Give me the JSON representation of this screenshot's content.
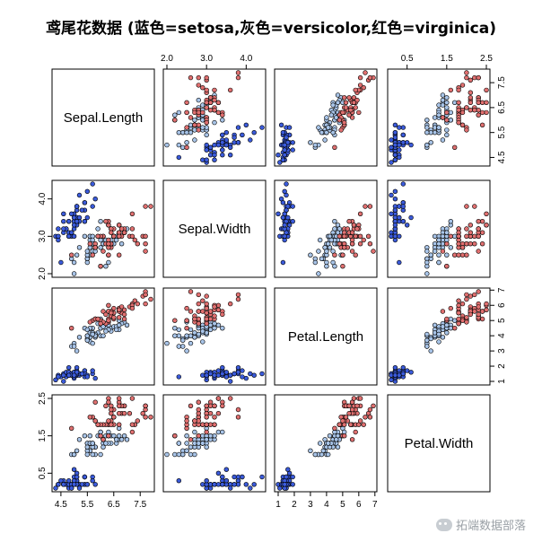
{
  "chart_data": {
    "type": "scatter",
    "title": "鸢尾花数据 (蓝色=setosa,灰色=versicolor,红色=virginica)",
    "variables": [
      "Sepal.Length",
      "Sepal.Width",
      "Petal.Length",
      "Petal.Width"
    ],
    "ranges": {
      "Sepal.Length": [
        4.3,
        7.9
      ],
      "Sepal.Width": [
        2.0,
        4.4
      ],
      "Petal.Length": [
        1.0,
        6.9
      ],
      "Petal.Width": [
        0.1,
        2.5
      ]
    },
    "ticks": {
      "Sepal.Length": [
        "4.5",
        "5.5",
        "6.5",
        "7.5"
      ],
      "Sepal.Width": [
        "2.0",
        "3.0",
        "4.0"
      ],
      "Petal.Length": [
        "1",
        "2",
        "3",
        "4",
        "5",
        "6",
        "7"
      ],
      "Petal.Width": [
        "0.5",
        "1.5",
        "2.5"
      ]
    },
    "species_colors": {
      "setosa": "#3b5bdb",
      "versicolor": "#a8c4e8",
      "virginica": "#e07070"
    },
    "grid": false,
    "legend": "none",
    "series": [
      {
        "values": [
          [
            5.1,
            3.5,
            1.4,
            0.2
          ],
          [
            4.9,
            3.0,
            1.4,
            0.2
          ],
          [
            4.7,
            3.2,
            1.3,
            0.2
          ],
          [
            4.6,
            3.1,
            1.5,
            0.2
          ],
          [
            5.0,
            3.6,
            1.4,
            0.2
          ],
          [
            5.4,
            3.9,
            1.7,
            0.4
          ],
          [
            4.6,
            3.4,
            1.4,
            0.3
          ],
          [
            5.0,
            3.4,
            1.5,
            0.2
          ],
          [
            4.4,
            2.9,
            1.4,
            0.2
          ],
          [
            4.9,
            3.1,
            1.5,
            0.1
          ],
          [
            5.4,
            3.7,
            1.5,
            0.2
          ],
          [
            4.8,
            3.4,
            1.6,
            0.2
          ],
          [
            4.8,
            3.0,
            1.4,
            0.1
          ],
          [
            4.3,
            3.0,
            1.1,
            0.1
          ],
          [
            5.8,
            4.0,
            1.2,
            0.2
          ],
          [
            5.7,
            4.4,
            1.5,
            0.4
          ],
          [
            5.4,
            3.9,
            1.3,
            0.4
          ],
          [
            5.1,
            3.5,
            1.4,
            0.3
          ],
          [
            5.7,
            3.8,
            1.7,
            0.3
          ],
          [
            5.1,
            3.8,
            1.5,
            0.3
          ],
          [
            5.4,
            3.4,
            1.7,
            0.2
          ],
          [
            5.1,
            3.7,
            1.5,
            0.4
          ],
          [
            4.6,
            3.6,
            1.0,
            0.2
          ],
          [
            5.1,
            3.3,
            1.7,
            0.5
          ],
          [
            4.8,
            3.4,
            1.9,
            0.2
          ],
          [
            5.0,
            3.0,
            1.6,
            0.2
          ],
          [
            5.0,
            3.4,
            1.6,
            0.4
          ],
          [
            5.2,
            3.5,
            1.5,
            0.2
          ],
          [
            5.2,
            3.4,
            1.4,
            0.2
          ],
          [
            4.7,
            3.2,
            1.6,
            0.2
          ],
          [
            4.8,
            3.1,
            1.6,
            0.2
          ],
          [
            5.4,
            3.4,
            1.5,
            0.4
          ],
          [
            5.2,
            4.1,
            1.5,
            0.1
          ],
          [
            5.5,
            4.2,
            1.4,
            0.2
          ],
          [
            4.9,
            3.1,
            1.5,
            0.2
          ],
          [
            5.0,
            3.2,
            1.2,
            0.2
          ],
          [
            5.5,
            3.5,
            1.3,
            0.2
          ],
          [
            4.9,
            3.6,
            1.4,
            0.1
          ],
          [
            4.4,
            3.0,
            1.3,
            0.2
          ],
          [
            5.1,
            3.4,
            1.5,
            0.2
          ],
          [
            5.0,
            3.5,
            1.3,
            0.3
          ],
          [
            4.5,
            2.3,
            1.3,
            0.3
          ],
          [
            4.4,
            3.2,
            1.3,
            0.2
          ],
          [
            5.0,
            3.5,
            1.6,
            0.6
          ],
          [
            5.1,
            3.8,
            1.9,
            0.4
          ],
          [
            4.8,
            3.0,
            1.4,
            0.3
          ],
          [
            5.1,
            3.8,
            1.6,
            0.2
          ],
          [
            4.6,
            3.2,
            1.4,
            0.2
          ],
          [
            5.3,
            3.7,
            1.5,
            0.2
          ],
          [
            5.0,
            3.3,
            1.4,
            0.2
          ]
        ]
      },
      {
        "values": [
          [
            7.0,
            3.2,
            4.7,
            1.4
          ],
          [
            6.4,
            3.2,
            4.5,
            1.5
          ],
          [
            6.9,
            3.1,
            4.9,
            1.5
          ],
          [
            5.5,
            2.3,
            4.0,
            1.3
          ],
          [
            6.5,
            2.8,
            4.6,
            1.5
          ],
          [
            5.7,
            2.8,
            4.5,
            1.3
          ],
          [
            6.3,
            3.3,
            4.7,
            1.6
          ],
          [
            4.9,
            2.4,
            3.3,
            1.0
          ],
          [
            6.6,
            2.9,
            4.6,
            1.3
          ],
          [
            5.2,
            2.7,
            3.9,
            1.4
          ],
          [
            5.0,
            2.0,
            3.5,
            1.0
          ],
          [
            5.9,
            3.0,
            4.2,
            1.5
          ],
          [
            6.0,
            2.2,
            4.0,
            1.0
          ],
          [
            6.1,
            2.9,
            4.7,
            1.4
          ],
          [
            5.6,
            2.9,
            3.6,
            1.3
          ],
          [
            6.7,
            3.1,
            4.4,
            1.4
          ],
          [
            5.6,
            3.0,
            4.5,
            1.5
          ],
          [
            5.8,
            2.7,
            4.1,
            1.0
          ],
          [
            6.2,
            2.2,
            4.5,
            1.5
          ],
          [
            5.6,
            2.5,
            3.9,
            1.1
          ],
          [
            5.9,
            3.2,
            4.8,
            1.8
          ],
          [
            6.1,
            2.8,
            4.0,
            1.3
          ],
          [
            6.3,
            2.5,
            4.9,
            1.5
          ],
          [
            6.1,
            2.8,
            4.7,
            1.2
          ],
          [
            6.4,
            2.9,
            4.3,
            1.3
          ],
          [
            6.6,
            3.0,
            4.4,
            1.4
          ],
          [
            6.8,
            2.8,
            4.8,
            1.4
          ],
          [
            6.7,
            3.0,
            5.0,
            1.7
          ],
          [
            6.0,
            2.9,
            4.5,
            1.5
          ],
          [
            5.7,
            2.6,
            3.5,
            1.0
          ],
          [
            5.5,
            2.4,
            3.8,
            1.1
          ],
          [
            5.5,
            2.4,
            3.7,
            1.0
          ],
          [
            5.8,
            2.7,
            3.9,
            1.2
          ],
          [
            6.0,
            2.7,
            5.1,
            1.6
          ],
          [
            5.4,
            3.0,
            4.5,
            1.5
          ],
          [
            6.0,
            3.4,
            4.5,
            1.6
          ],
          [
            6.7,
            3.1,
            4.7,
            1.5
          ],
          [
            6.3,
            2.3,
            4.4,
            1.3
          ],
          [
            5.6,
            3.0,
            4.1,
            1.3
          ],
          [
            5.5,
            2.5,
            4.0,
            1.3
          ],
          [
            5.5,
            2.6,
            4.4,
            1.2
          ],
          [
            6.1,
            3.0,
            4.6,
            1.4
          ],
          [
            5.8,
            2.6,
            4.0,
            1.2
          ],
          [
            5.0,
            2.3,
            3.3,
            1.0
          ],
          [
            5.6,
            2.7,
            4.2,
            1.3
          ],
          [
            5.7,
            3.0,
            4.2,
            1.2
          ],
          [
            5.7,
            2.9,
            4.2,
            1.3
          ],
          [
            6.2,
            2.9,
            4.3,
            1.3
          ],
          [
            5.1,
            2.5,
            3.0,
            1.1
          ],
          [
            5.7,
            2.8,
            4.1,
            1.3
          ]
        ]
      },
      {
        "values": [
          [
            6.3,
            3.3,
            6.0,
            2.5
          ],
          [
            5.8,
            2.7,
            5.1,
            1.9
          ],
          [
            7.1,
            3.0,
            5.9,
            2.1
          ],
          [
            6.3,
            2.9,
            5.6,
            1.8
          ],
          [
            6.5,
            3.0,
            5.8,
            2.2
          ],
          [
            7.6,
            3.0,
            6.6,
            2.1
          ],
          [
            4.9,
            2.5,
            4.5,
            1.7
          ],
          [
            7.3,
            2.9,
            6.3,
            1.8
          ],
          [
            6.7,
            2.5,
            5.8,
            1.8
          ],
          [
            7.2,
            3.6,
            6.1,
            2.5
          ],
          [
            6.5,
            3.2,
            5.1,
            2.0
          ],
          [
            6.4,
            2.7,
            5.3,
            1.9
          ],
          [
            6.8,
            3.0,
            5.5,
            2.1
          ],
          [
            5.7,
            2.5,
            5.0,
            2.0
          ],
          [
            5.8,
            2.8,
            5.1,
            2.4
          ],
          [
            6.4,
            3.2,
            5.3,
            2.3
          ],
          [
            6.5,
            3.0,
            5.5,
            1.8
          ],
          [
            7.7,
            3.8,
            6.7,
            2.2
          ],
          [
            7.7,
            2.6,
            6.9,
            2.3
          ],
          [
            6.0,
            2.2,
            5.0,
            1.5
          ],
          [
            6.9,
            3.2,
            5.7,
            2.3
          ],
          [
            5.6,
            2.8,
            4.9,
            2.0
          ],
          [
            7.7,
            2.8,
            6.7,
            2.0
          ],
          [
            6.3,
            2.7,
            4.9,
            1.8
          ],
          [
            6.7,
            3.3,
            5.7,
            2.1
          ],
          [
            7.2,
            3.2,
            6.0,
            1.8
          ],
          [
            6.2,
            2.8,
            4.8,
            1.8
          ],
          [
            6.1,
            3.0,
            4.9,
            1.8
          ],
          [
            6.4,
            2.8,
            5.6,
            2.1
          ],
          [
            7.2,
            3.0,
            5.8,
            1.6
          ],
          [
            7.4,
            2.8,
            6.1,
            1.9
          ],
          [
            7.9,
            3.8,
            6.4,
            2.0
          ],
          [
            6.4,
            2.8,
            5.6,
            2.2
          ],
          [
            6.3,
            2.8,
            5.1,
            1.5
          ],
          [
            6.1,
            2.6,
            5.6,
            1.4
          ],
          [
            7.7,
            3.0,
            6.1,
            2.3
          ],
          [
            6.3,
            3.4,
            5.6,
            2.4
          ],
          [
            6.4,
            3.1,
            5.5,
            1.8
          ],
          [
            6.0,
            3.0,
            4.8,
            1.8
          ],
          [
            6.9,
            3.1,
            5.4,
            2.1
          ],
          [
            6.7,
            3.1,
            5.6,
            2.4
          ],
          [
            6.9,
            3.1,
            5.1,
            2.3
          ],
          [
            5.8,
            2.7,
            5.1,
            1.9
          ],
          [
            6.8,
            3.2,
            5.9,
            2.3
          ],
          [
            6.7,
            3.3,
            5.7,
            2.5
          ],
          [
            6.7,
            3.0,
            5.2,
            2.3
          ],
          [
            6.3,
            2.5,
            5.0,
            1.9
          ],
          [
            6.5,
            3.0,
            5.2,
            2.0
          ],
          [
            6.2,
            3.4,
            5.4,
            2.3
          ],
          [
            5.9,
            3.0,
            5.1,
            1.8
          ]
        ]
      }
    ]
  },
  "watermark": "拓端数据部落"
}
